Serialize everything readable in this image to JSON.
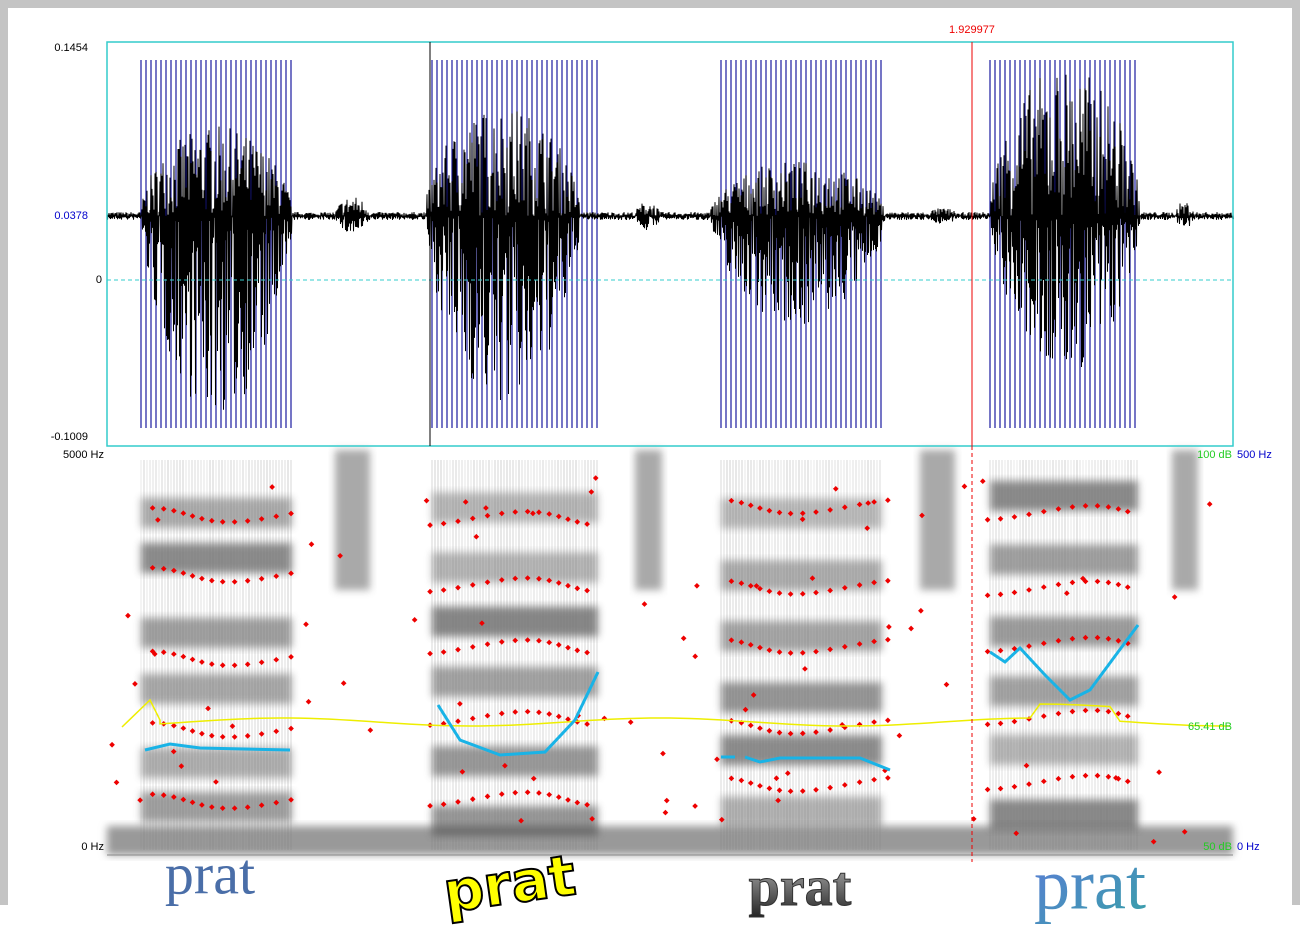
{
  "waveform": {
    "y_labels": [
      "0.1454",
      "0.0378",
      "0",
      "-0.1009"
    ],
    "cursor_label": "1.929977"
  },
  "spectrogram": {
    "left_labels": [
      "5000 Hz",
      "0 Hz"
    ],
    "right_labels": [
      "100 dB",
      "500 Hz",
      "65.41 dB",
      "50 dB",
      "0 Hz"
    ]
  },
  "words": [
    "prat",
    "prat",
    "prat",
    "prat"
  ]
}
